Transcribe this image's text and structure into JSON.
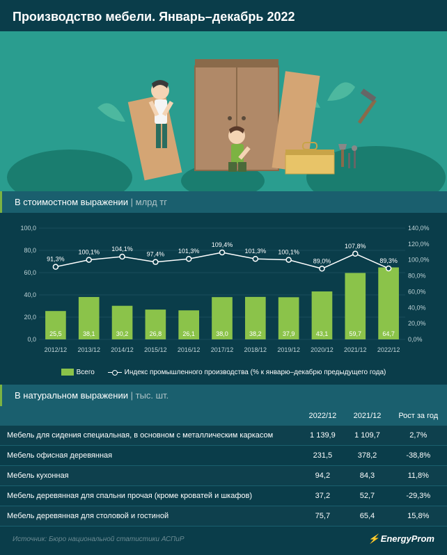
{
  "title": "Производство мебели. Январь–декабрь 2022",
  "section1": {
    "title": "В стоимостном выражении",
    "unit": "млрд тг"
  },
  "chart": {
    "type": "bar+line",
    "categories": [
      "2012/12",
      "2013/12",
      "2014/12",
      "2015/12",
      "2016/12",
      "2017/12",
      "2018/12",
      "2019/12",
      "2020/12",
      "2021/12",
      "2022/12"
    ],
    "bar_values": [
      25.5,
      38.1,
      30.2,
      26.8,
      26.1,
      38.0,
      38.2,
      37.9,
      43.1,
      59.7,
      64.7
    ],
    "bar_labels": [
      "25,5",
      "38,1",
      "30,2",
      "26,8",
      "26,1",
      "38,0",
      "38,2",
      "37,9",
      "43,1",
      "59,7",
      "64,7"
    ],
    "line_values": [
      91.3,
      100.1,
      104.1,
      97.4,
      101.3,
      109.4,
      101.3,
      100.1,
      89.0,
      107.8,
      89.3
    ],
    "line_labels": [
      "91,3%",
      "100,1%",
      "104,1%",
      "97,4%",
      "101,3%",
      "109,4%",
      "101,3%",
      "100,1%",
      "89,0%",
      "107,8%",
      "89,3%"
    ],
    "bar_color": "#8bc34a",
    "line_color": "#ffffff",
    "grid_color": "#2a5f6e",
    "y1_ticks": [
      "0,0",
      "20,0",
      "40,0",
      "60,0",
      "80,0",
      "100,0"
    ],
    "y1_max": 100,
    "y2_ticks": [
      "0,0%",
      "20,0%",
      "40,0%",
      "60,0%",
      "80,0%",
      "100,0%",
      "120,0%",
      "140,0%"
    ],
    "y2_max": 140,
    "legend_bar": "Всего",
    "legend_line": "Индекс промышленного производства (% к январю–декабрю предыдущего года)"
  },
  "section2": {
    "title": "В натуральном выражении",
    "unit": "тыс. шт."
  },
  "table": {
    "columns": [
      "",
      "2022/12",
      "2021/12",
      "Рост за год"
    ],
    "rows": [
      [
        "Мебель для сидения специальная, в основном с металлическим каркасом",
        "1 139,9",
        "1 109,7",
        "2,7%"
      ],
      [
        "Мебель офисная деревянная",
        "231,5",
        "378,2",
        "-38,8%"
      ],
      [
        "Мебель кухонная",
        "94,2",
        "84,3",
        "11,8%"
      ],
      [
        "Мебель деревянная для спальни прочая (кроме кроватей и шкафов)",
        "37,2",
        "52,7",
        "-29,3%"
      ],
      [
        "Мебель деревянная для столовой и гостиной",
        "75,7",
        "65,4",
        "15,8%"
      ]
    ]
  },
  "source": "Источник: Бюро национальной статистики АСПиР",
  "brand": "EnergyProm"
}
